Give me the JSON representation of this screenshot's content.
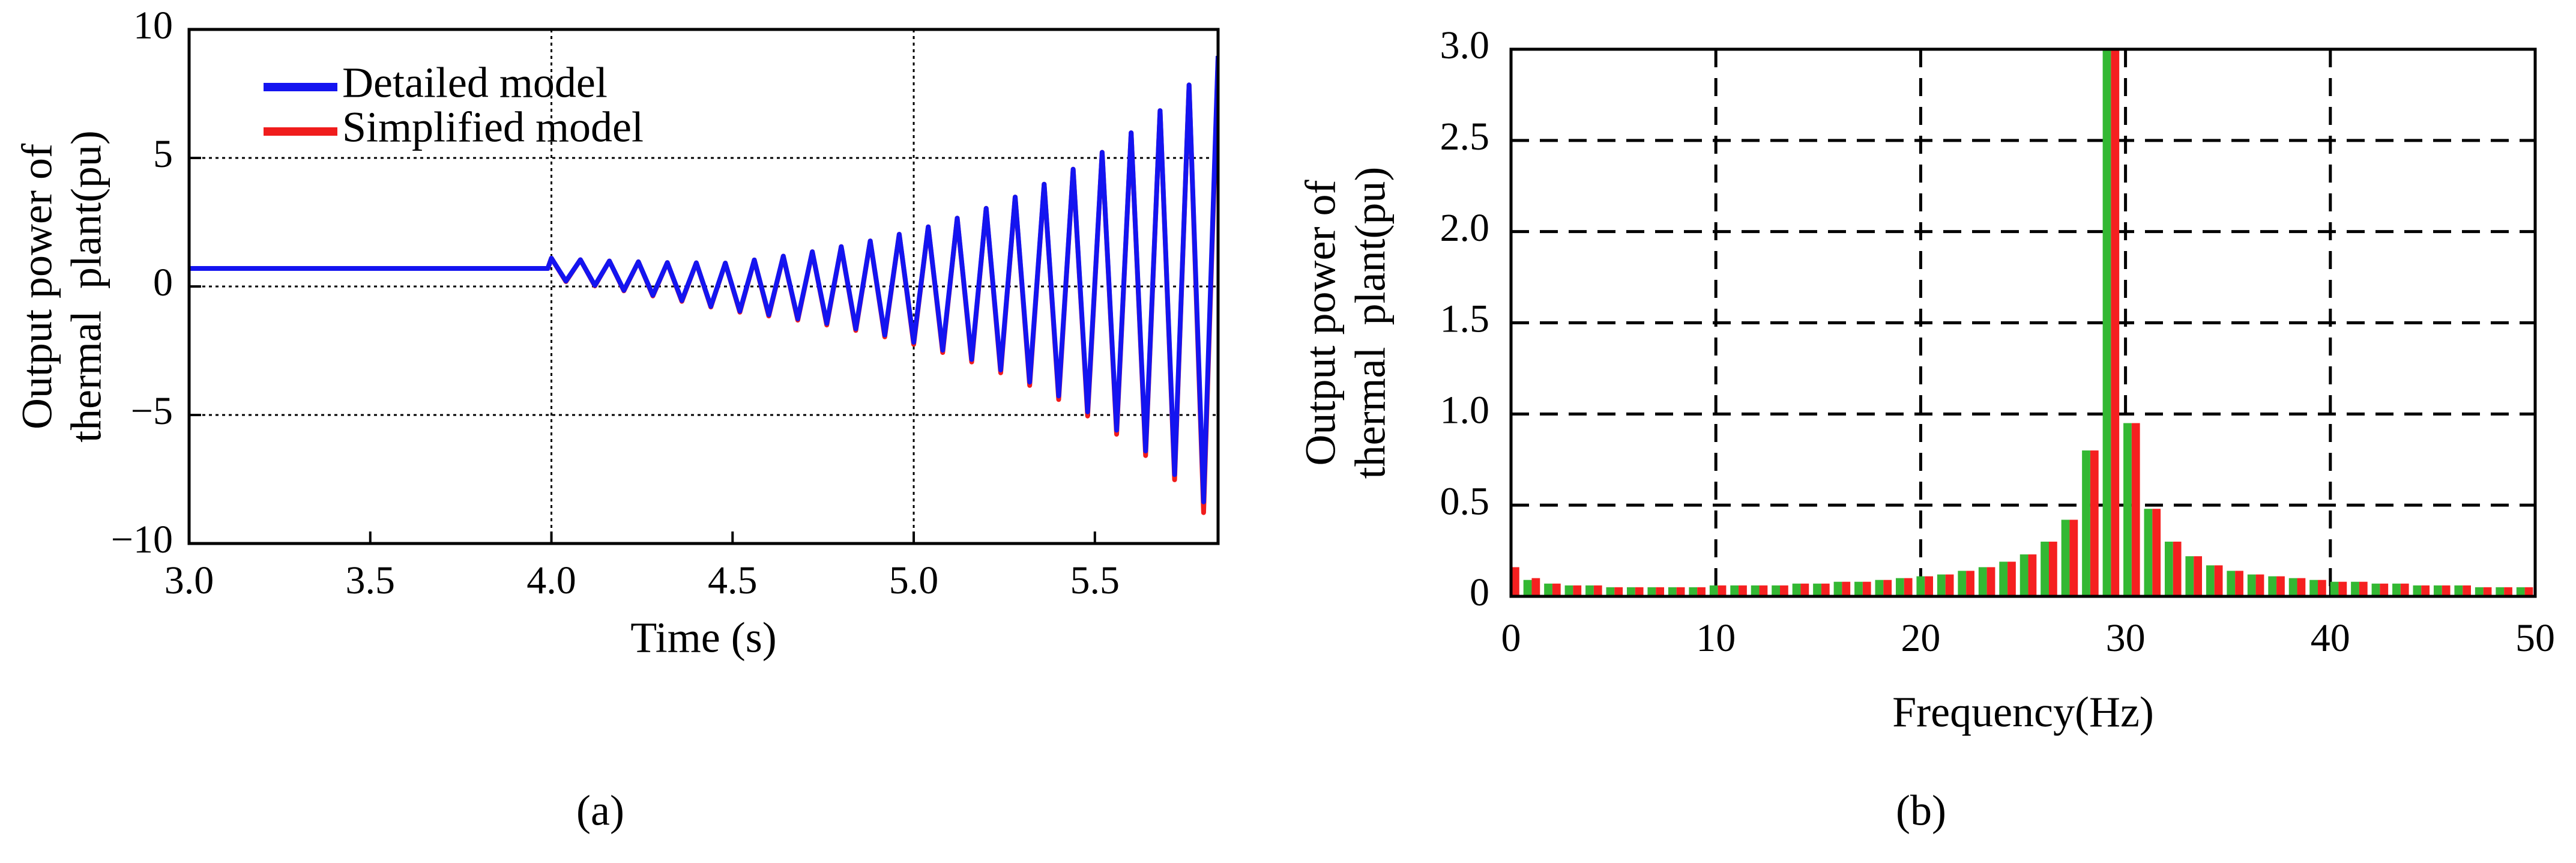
{
  "chart_data": [
    {
      "type": "line",
      "xlabel": "Time (s)",
      "ylabel": [
        "Output power of",
        "thermal  plant(pu)"
      ],
      "caption": "(a)",
      "x": [
        3.0,
        3.99,
        4.0,
        4.04,
        4.08,
        4.12,
        4.16,
        4.2,
        4.24,
        4.28,
        4.32,
        4.36,
        4.4,
        4.44,
        4.48,
        4.52,
        4.56,
        4.6,
        4.64,
        4.68,
        4.72,
        4.76,
        4.8,
        4.84,
        4.88,
        4.92,
        4.96,
        5.0,
        5.04,
        5.08,
        5.12,
        5.16,
        5.2,
        5.24,
        5.28,
        5.32,
        5.36,
        5.4,
        5.44,
        5.48,
        5.52,
        5.56,
        5.6,
        5.64,
        5.68,
        5.72,
        5.76,
        5.8,
        5.84
      ],
      "series": [
        {
          "name": "Detailed model",
          "color": "#1414f0",
          "values": [
            0.7,
            0.7,
            1.1,
            0.21,
            1.04,
            0.04,
            0.99,
            -0.15,
            0.96,
            -0.34,
            0.93,
            -0.55,
            0.92,
            -0.77,
            0.91,
            -0.96,
            1.03,
            -1.1,
            1.18,
            -1.26,
            1.35,
            -1.44,
            1.55,
            -1.65,
            1.77,
            -1.89,
            2.03,
            -2.17,
            2.32,
            -2.48,
            2.66,
            -2.84,
            3.04,
            -3.25,
            3.48,
            -3.72,
            3.98,
            -4.26,
            4.56,
            -4.88,
            5.22,
            -5.59,
            5.98,
            -6.4,
            6.84,
            -7.32,
            7.84,
            -8.38,
            8.97
          ]
        },
        {
          "name": "Simplified model",
          "color": "#f01c1c",
          "values": [
            0.7,
            0.7,
            1.1,
            0.19,
            1.04,
            0.02,
            0.99,
            -0.17,
            0.96,
            -0.37,
            0.93,
            -0.58,
            0.92,
            -0.8,
            0.91,
            -1.0,
            1.03,
            -1.15,
            1.18,
            -1.31,
            1.35,
            -1.5,
            1.55,
            -1.71,
            1.77,
            -1.96,
            2.03,
            -2.25,
            2.32,
            -2.57,
            2.66,
            -2.94,
            3.04,
            -3.36,
            3.48,
            -3.85,
            3.98,
            -4.4,
            4.56,
            -5.04,
            5.22,
            -5.75,
            5.98,
            -6.58,
            6.84,
            -7.52,
            7.84,
            -8.8,
            8.8
          ]
        }
      ],
      "xlim": [
        3.0,
        5.84
      ],
      "xticks": [
        {
          "value": 3.0,
          "label": "3.0"
        },
        3.5,
        {
          "value": 4.0,
          "label": "4.0"
        },
        4.5,
        {
          "value": 5.0,
          "label": "5.0"
        },
        5.5
      ],
      "ylim": [
        -10,
        10
      ],
      "yticks": [
        {
          "value": -10,
          "label": "−10"
        },
        {
          "value": -5,
          "label": "−5"
        },
        0,
        5,
        10
      ],
      "grid": "dotted"
    },
    {
      "type": "bar",
      "xlabel": "Frequency(Hz)",
      "ylabel": [
        "Output power of",
        "thermal  plant(pu)"
      ],
      "caption": "(b)",
      "x": [
        0,
        1.01,
        2.02,
        3.03,
        4.04,
        5.05,
        6.06,
        7.07,
        8.08,
        9.09,
        10.1,
        11.11,
        12.12,
        13.13,
        14.14,
        15.15,
        16.16,
        17.17,
        18.18,
        19.19,
        20.2,
        21.21,
        22.22,
        23.23,
        24.24,
        25.25,
        26.26,
        27.27,
        28.28,
        29.29,
        30.3,
        31.31,
        32.32,
        33.33,
        34.34,
        35.35,
        36.36,
        37.37,
        38.38,
        39.39,
        40.4,
        41.41,
        42.42,
        43.43,
        44.44,
        45.45,
        46.46,
        47.47,
        48.48,
        49.49
      ],
      "series": [
        {
          "color": "#33b833",
          "values": [
            0.15,
            0.09,
            0.07,
            0.06,
            0.06,
            0.05,
            0.05,
            0.05,
            0.05,
            0.05,
            0.06,
            0.06,
            0.06,
            0.06,
            0.07,
            0.07,
            0.08,
            0.08,
            0.09,
            0.1,
            0.11,
            0.12,
            0.14,
            0.16,
            0.19,
            0.23,
            0.3,
            0.42,
            0.8,
            3.0,
            0.95,
            0.48,
            0.3,
            0.22,
            0.17,
            0.14,
            0.12,
            0.11,
            0.1,
            0.09,
            0.08,
            0.08,
            0.07,
            0.07,
            0.06,
            0.06,
            0.06,
            0.05,
            0.05,
            0.05
          ]
        },
        {
          "color": "#f52020",
          "values": [
            0.16,
            0.1,
            0.07,
            0.06,
            0.06,
            0.05,
            0.05,
            0.05,
            0.05,
            0.05,
            0.06,
            0.06,
            0.06,
            0.06,
            0.07,
            0.07,
            0.08,
            0.08,
            0.09,
            0.1,
            0.11,
            0.12,
            0.14,
            0.16,
            0.19,
            0.23,
            0.3,
            0.42,
            0.8,
            3.0,
            0.95,
            0.48,
            0.3,
            0.22,
            0.17,
            0.14,
            0.12,
            0.11,
            0.1,
            0.09,
            0.08,
            0.08,
            0.07,
            0.07,
            0.06,
            0.06,
            0.06,
            0.05,
            0.05,
            0.05
          ]
        }
      ],
      "xlim": [
        0,
        50
      ],
      "xticks": [
        0,
        10,
        20,
        30,
        40,
        50
      ],
      "ylim": [
        0,
        3.0
      ],
      "yticks": [
        0,
        0.5,
        {
          "value": 1.0,
          "label": "1.0"
        },
        1.5,
        {
          "value": 2.0,
          "label": "2.0"
        },
        2.5,
        {
          "value": 3.0,
          "label": "3.0"
        }
      ],
      "grid": "dashed"
    }
  ]
}
